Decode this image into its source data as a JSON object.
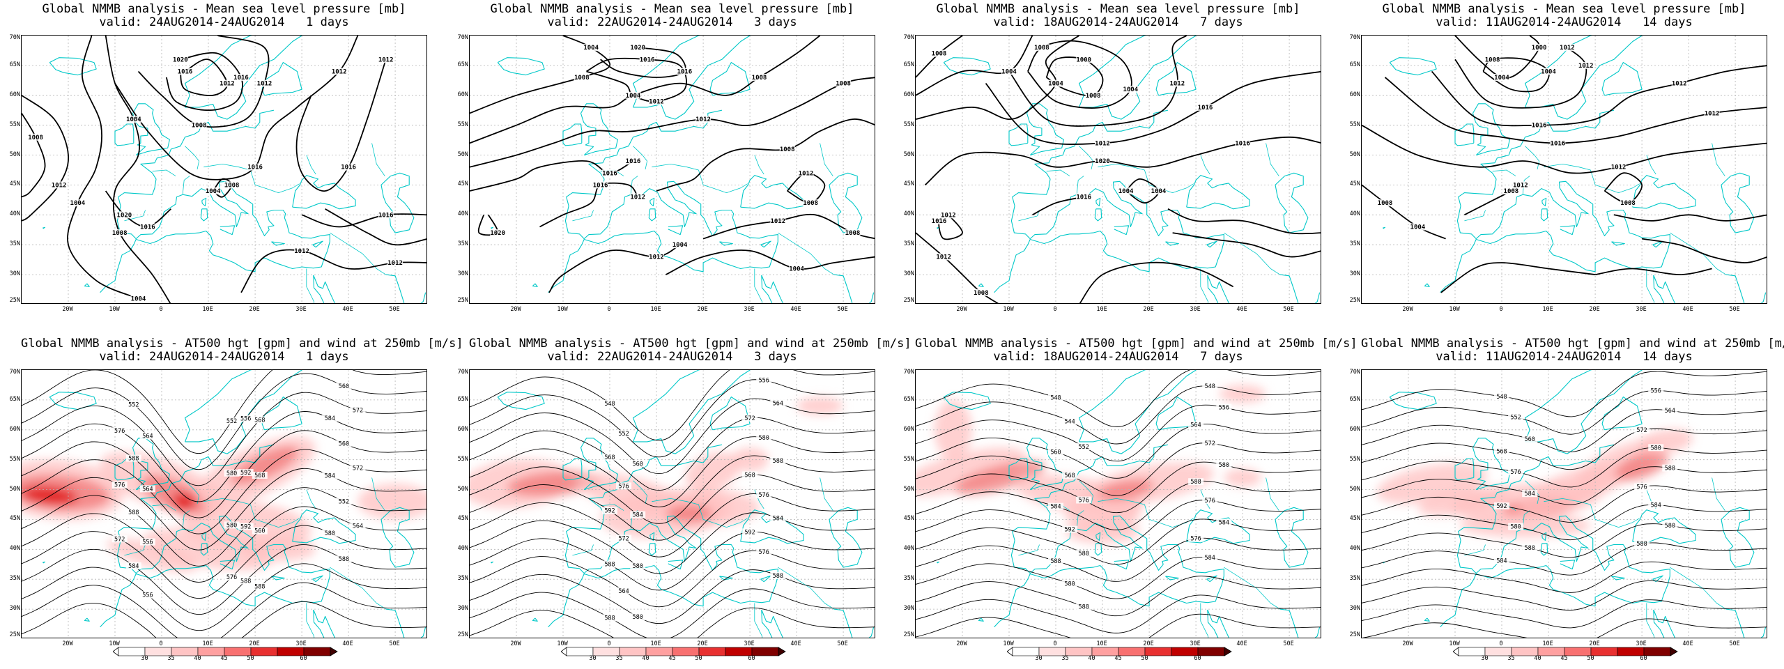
{
  "panels": [
    {
      "l1": "Global NMMB analysis - Mean sea level pressure [mb]",
      "l2": "valid: 24AUG2014-24AUG2014   1 days",
      "type": "mslp",
      "variant": 0,
      "labels": [
        "1008",
        "1012",
        "1004",
        "1004",
        "1004",
        "1008",
        "1012",
        "1016",
        "1016",
        "1020",
        "1008",
        "1012",
        "1016",
        "1012",
        "1016",
        "1012",
        "1020",
        "1016",
        "1016",
        "1012",
        "1012",
        "1008",
        "1004",
        "1008"
      ]
    },
    {
      "l1": "Global NMMB analysis - Mean sea level pressure [mb]",
      "l2": "valid: 22AUG2014-24AUG2014   3 days",
      "type": "mslp",
      "variant": 1,
      "labels": [
        "1008",
        "1004",
        "1004",
        "1008",
        "1012",
        "1008",
        "1012",
        "1016",
        "1016",
        "1020",
        "1016",
        "1016",
        "1020",
        "1016",
        "1012",
        "1008",
        "1012",
        "1008",
        "1004",
        "1012",
        "1004",
        "1012",
        "1008"
      ]
    },
    {
      "l1": "Global NMMB analysis - Mean sea level pressure [mb]",
      "l2": "valid: 18AUG2014-24AUG2014   7 days",
      "type": "mslp",
      "variant": 2,
      "labels": [
        "1008",
        "1004",
        "1004",
        "1008",
        "1000",
        "1004",
        "1008",
        "1012",
        "1012",
        "1016",
        "1020",
        "1016",
        "1016",
        "1012",
        "1012",
        "1008",
        "1004",
        "1004",
        "1012",
        "1016"
      ]
    },
    {
      "l1": "Global NMMB analysis - Mean sea level pressure [mb]",
      "l2": "valid: 11AUG2014-24AUG2014   14 days",
      "type": "mslp",
      "variant": 3,
      "labels": [
        "1004",
        "1000",
        "1004",
        "1008",
        "1012",
        "1012",
        "1016",
        "1012",
        "1016",
        "1012",
        "1012",
        "1008",
        "1004",
        "1008",
        "1012",
        "1008"
      ]
    },
    {
      "l1": "Global NMMB analysis - AT500 hgt [gpm] and wind at 250mb [m/s]",
      "l2": "valid: 24AUG2014-24AUG2014   1 days",
      "type": "z500",
      "variant": 0,
      "labels": [
        "552",
        "552",
        "556",
        "560",
        "564",
        "568",
        "572",
        "576",
        "580",
        "584",
        "588",
        "592",
        "560",
        "564",
        "568",
        "572",
        "576",
        "580",
        "584",
        "588",
        "592",
        "552",
        "556",
        "560",
        "564",
        "572",
        "576",
        "580",
        "584",
        "588",
        "588",
        "556",
        "588"
      ]
    },
    {
      "l1": "Global NMMB analysis - AT500 hgt [gpm] and wind at 250mb [m/s]",
      "l2": "valid: 22AUG2014-24AUG2014   3 days",
      "type": "z500",
      "variant": 1,
      "labels": [
        "548",
        "552",
        "556",
        "560",
        "564",
        "568",
        "572",
        "576",
        "580",
        "584",
        "588",
        "592",
        "568",
        "572",
        "576",
        "580",
        "584",
        "588",
        "592",
        "564",
        "576",
        "580",
        "588",
        "588"
      ]
    },
    {
      "l1": "Global NMMB analysis - AT500 hgt [gpm] and wind at 250mb [m/s]",
      "l2": "valid: 18AUG2014-24AUG2014   7 days",
      "type": "z500",
      "variant": 2,
      "labels": [
        "548",
        "544",
        "548",
        "552",
        "556",
        "560",
        "564",
        "568",
        "572",
        "576",
        "580",
        "584",
        "588",
        "592",
        "576",
        "580",
        "584",
        "588",
        "576",
        "580",
        "584",
        "588"
      ]
    },
    {
      "l1": "Global NMMB analysis - AT500 hgt [gpm] and wind at 250mb [m/s]",
      "l2": "valid: 11AUG2014-24AUG2014   14 days",
      "type": "z500",
      "variant": 3,
      "labels": [
        "548",
        "552",
        "556",
        "560",
        "564",
        "568",
        "572",
        "576",
        "580",
        "584",
        "588",
        "592",
        "576",
        "580",
        "584",
        "588",
        "580",
        "584",
        "588"
      ]
    }
  ],
  "lat_labels": [
    "70N",
    "65N",
    "60N",
    "55N",
    "50N",
    "45N",
    "40N",
    "35N",
    "30N",
    "25N"
  ],
  "lon_labels": [
    "20W",
    "10W",
    "0",
    "10E",
    "20E",
    "30E",
    "40E",
    "50E"
  ],
  "colorbar_labels": [
    "30",
    "35",
    "40",
    "45",
    "50",
    "60"
  ],
  "colors": {
    "coast": "#00c8c8",
    "contour": "#000000",
    "grid": "#b4b4b4",
    "wind_light": "#ffc0c0",
    "wind_mid": "#f07070",
    "wind_strong": "#e01010",
    "wind_max": "#900000"
  }
}
